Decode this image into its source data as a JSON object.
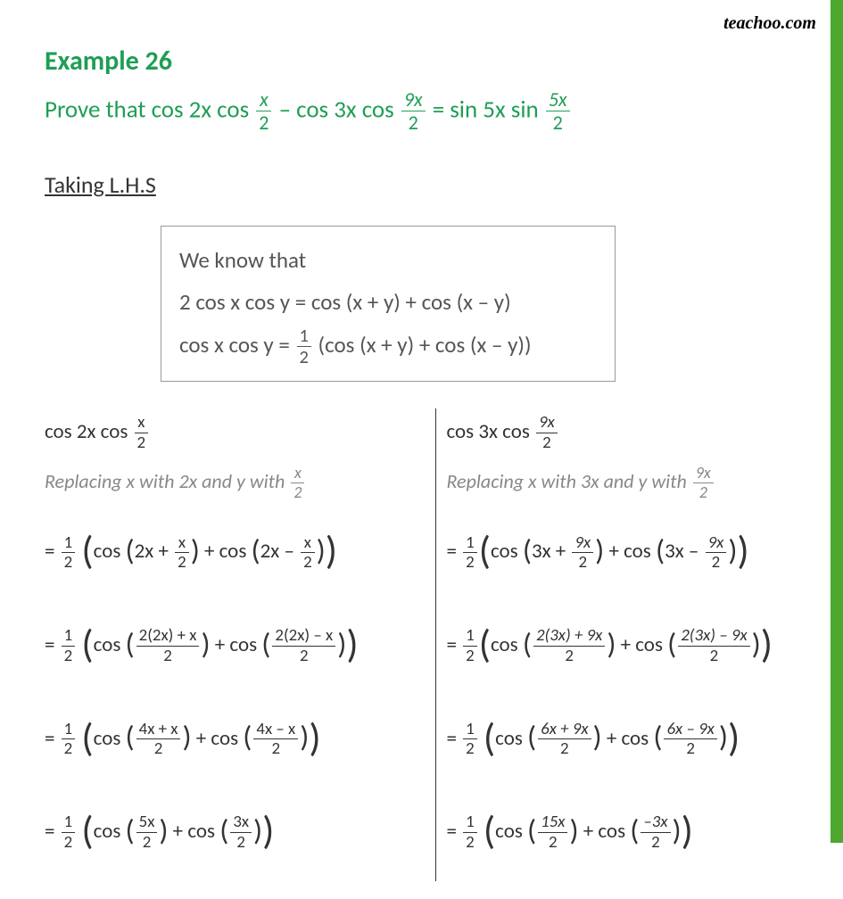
{
  "logo": "teachoo.com",
  "title": "Example  26",
  "problem_prefix": "Prove that cos 2x cos ",
  "problem_mid1": " – cos 3x cos ",
  "problem_mid2": " = sin 5x sin ",
  "lhs_label": "Taking L.H.S",
  "box_l1": "We know that",
  "box_l2": "2 cos x cos y = cos (x + y) + cos (x – y)",
  "box_l3a": "cos x cos y = ",
  "box_l3b": " (cos (x + y) + cos (x – y))",
  "left": {
    "head": "cos 2x cos ",
    "replace_a": "Replacing  x  with 2x and y with ",
    "s1a": "cos  ",
    "s1b": "2x + ",
    "s1c": " + cos ",
    "s1d": "2x – ",
    "s2a": "cos ",
    "s2b": " + cos ",
    "s3a": "cos  ",
    "s3b": " + cos  ",
    "s4a": "cos  ",
    "s4b": " + cos  ",
    "f2n1": "2(2x) + x",
    "f2n2": "2(2x) – x",
    "f3n1": "4x + x",
    "f3n2": "4x  – x",
    "f4n1": "5x",
    "f4n2": "3x"
  },
  "right": {
    "head": "cos 3x cos ",
    "replace_a": "Replacing  x  with 3x and y with ",
    "s1a": "cos  ",
    "s1b": "3x + ",
    "s1c": " + cos ",
    "s1d": "3x – ",
    "s2a": "cos ",
    "s2b": " + cos ",
    "s3a": "cos  ",
    "s3b": " + cos  ",
    "s4a": "cos  ",
    "s4b": " + cos  ",
    "f2n1": "2(3x) + 9x",
    "f2n2": "2(3x) – 9x",
    "f3n1": "6x + 9x",
    "f3n2": "6x  – 9x",
    "f4n1": "15x",
    "f4n2": "–3x"
  },
  "colors": {
    "accent": "#1e9e54",
    "bar": "#4ea72e",
    "text": "#333",
    "muted": "#888"
  }
}
